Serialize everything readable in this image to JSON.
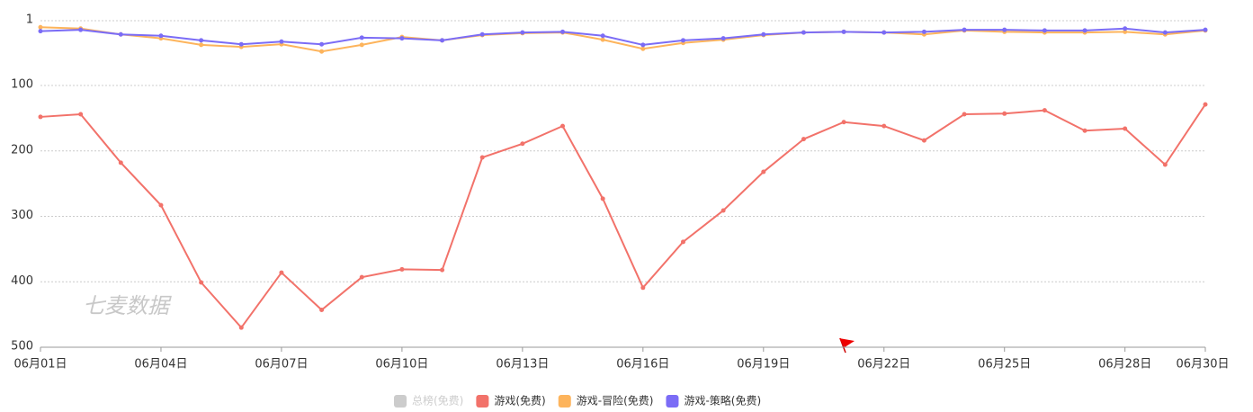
{
  "chart_data": {
    "type": "line",
    "inverse_y": true,
    "grid": true,
    "legend_position": "bottom",
    "watermark": "七麦数据",
    "categories": [
      "06月01日",
      null,
      null,
      "06月04日",
      null,
      null,
      "06月07日",
      null,
      null,
      "06月10日",
      null,
      null,
      "06月13日",
      null,
      null,
      "06月16日",
      null,
      null,
      "06月19日",
      null,
      null,
      "06月22日",
      null,
      null,
      "06月25日",
      null,
      null,
      "06月28日",
      null,
      "06月30日"
    ],
    "ylim": [
      1,
      500
    ],
    "yticks": [
      1,
      100,
      200,
      300,
      400,
      500
    ],
    "series": [
      {
        "name": "总榜(免费)",
        "color": "#cccccc",
        "visible": false,
        "values": [
          null,
          null,
          null,
          null,
          null,
          null,
          null,
          null,
          null,
          null,
          null,
          null,
          null,
          null,
          null,
          null,
          null,
          null,
          null,
          null,
          null,
          null,
          null,
          null,
          null,
          null,
          null,
          null,
          null,
          null
        ]
      },
      {
        "name": "游戏(免费)",
        "color": "#f2726a",
        "visible": true,
        "values": [
          148,
          144,
          218,
          283,
          401,
          470,
          386,
          443,
          393,
          381,
          382,
          210,
          189,
          162,
          273,
          409,
          339,
          291,
          232,
          182,
          156,
          162,
          184,
          144,
          143,
          138,
          169,
          166,
          221,
          129
        ]
      },
      {
        "name": "游戏-冒险(免费)",
        "color": "#fdb45c",
        "visible": true,
        "values": [
          11,
          13,
          22,
          28,
          38,
          41,
          37,
          48,
          38,
          26,
          31,
          23,
          20,
          19,
          30,
          44,
          35,
          30,
          23,
          19,
          18,
          19,
          22,
          16,
          18,
          19,
          19,
          18,
          22,
          16
        ]
      },
      {
        "name": "游戏-策略(免费)",
        "color": "#7b6cf6",
        "visible": true,
        "values": [
          17,
          15,
          22,
          24,
          31,
          37,
          33,
          37,
          27,
          28,
          31,
          22,
          19,
          18,
          24,
          38,
          31,
          28,
          22,
          19,
          18,
          19,
          18,
          15,
          15,
          16,
          16,
          13,
          19,
          15
        ]
      }
    ]
  }
}
